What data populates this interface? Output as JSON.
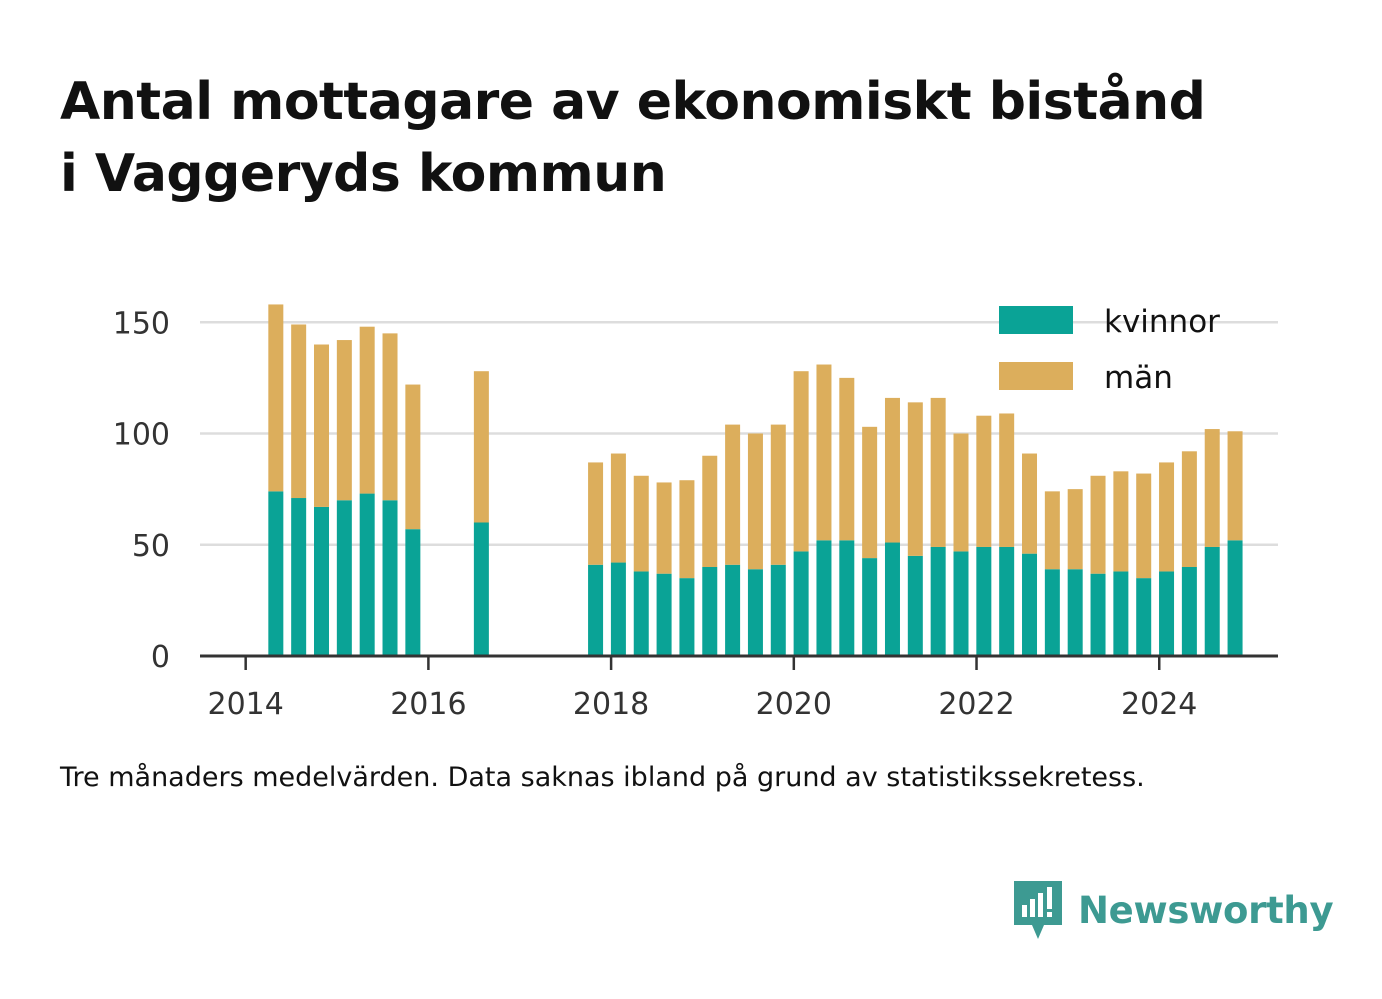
{
  "title_line1": "Antal mottagare av ekonomiskt bistånd",
  "title_line2": "i Vaggeryds kommun",
  "note": "Tre månaders medelvärden. Data saknas ibland på grund av statistikssekretess.",
  "brand": {
    "name": "Newsworthy",
    "icon": "newsworthy-logo-icon",
    "color": "#3d9a92"
  },
  "chart_data": {
    "type": "bar",
    "stacked": true,
    "x_ticks": [
      2014,
      2016,
      2018,
      2020,
      2022,
      2024
    ],
    "y_ticks": [
      0,
      50,
      100,
      150
    ],
    "ylim": [
      0,
      160
    ],
    "xlim": [
      2013.5,
      2025.3
    ],
    "grid": "horizontal",
    "legend_position": "top-right",
    "series": [
      {
        "name": "kvinnor",
        "color": "#0aa396"
      },
      {
        "name": "män",
        "color": "#dcae5c"
      }
    ],
    "points": [
      {
        "x": 2014.33,
        "kvinnor": 74,
        "män": 84
      },
      {
        "x": 2014.58,
        "kvinnor": 71,
        "män": 78
      },
      {
        "x": 2014.83,
        "kvinnor": 67,
        "män": 73
      },
      {
        "x": 2015.08,
        "kvinnor": 70,
        "män": 72
      },
      {
        "x": 2015.33,
        "kvinnor": 73,
        "män": 75
      },
      {
        "x": 2015.58,
        "kvinnor": 70,
        "män": 75
      },
      {
        "x": 2015.83,
        "kvinnor": 57,
        "män": 65
      },
      {
        "x": 2016.58,
        "kvinnor": 60,
        "män": 68
      },
      {
        "x": 2017.83,
        "kvinnor": 41,
        "män": 46
      },
      {
        "x": 2018.08,
        "kvinnor": 42,
        "män": 49
      },
      {
        "x": 2018.33,
        "kvinnor": 38,
        "män": 43
      },
      {
        "x": 2018.58,
        "kvinnor": 37,
        "män": 41
      },
      {
        "x": 2018.83,
        "kvinnor": 35,
        "män": 44
      },
      {
        "x": 2019.08,
        "kvinnor": 40,
        "män": 50
      },
      {
        "x": 2019.33,
        "kvinnor": 41,
        "män": 63
      },
      {
        "x": 2019.58,
        "kvinnor": 39,
        "män": 61
      },
      {
        "x": 2019.83,
        "kvinnor": 41,
        "män": 63
      },
      {
        "x": 2020.08,
        "kvinnor": 47,
        "män": 81
      },
      {
        "x": 2020.33,
        "kvinnor": 52,
        "män": 79
      },
      {
        "x": 2020.58,
        "kvinnor": 52,
        "män": 73
      },
      {
        "x": 2020.83,
        "kvinnor": 44,
        "män": 59
      },
      {
        "x": 2021.08,
        "kvinnor": 51,
        "män": 65
      },
      {
        "x": 2021.33,
        "kvinnor": 45,
        "män": 69
      },
      {
        "x": 2021.58,
        "kvinnor": 49,
        "män": 67
      },
      {
        "x": 2021.83,
        "kvinnor": 47,
        "män": 53
      },
      {
        "x": 2022.08,
        "kvinnor": 49,
        "män": 59
      },
      {
        "x": 2022.33,
        "kvinnor": 49,
        "män": 60
      },
      {
        "x": 2022.58,
        "kvinnor": 46,
        "män": 45
      },
      {
        "x": 2022.83,
        "kvinnor": 39,
        "män": 35
      },
      {
        "x": 2023.08,
        "kvinnor": 39,
        "män": 36
      },
      {
        "x": 2023.33,
        "kvinnor": 37,
        "män": 44
      },
      {
        "x": 2023.58,
        "kvinnor": 38,
        "män": 45
      },
      {
        "x": 2023.83,
        "kvinnor": 35,
        "män": 47
      },
      {
        "x": 2024.08,
        "kvinnor": 38,
        "män": 49
      },
      {
        "x": 2024.33,
        "kvinnor": 40,
        "män": 52
      },
      {
        "x": 2024.58,
        "kvinnor": 49,
        "män": 53
      },
      {
        "x": 2024.83,
        "kvinnor": 52,
        "män": 49
      }
    ]
  }
}
